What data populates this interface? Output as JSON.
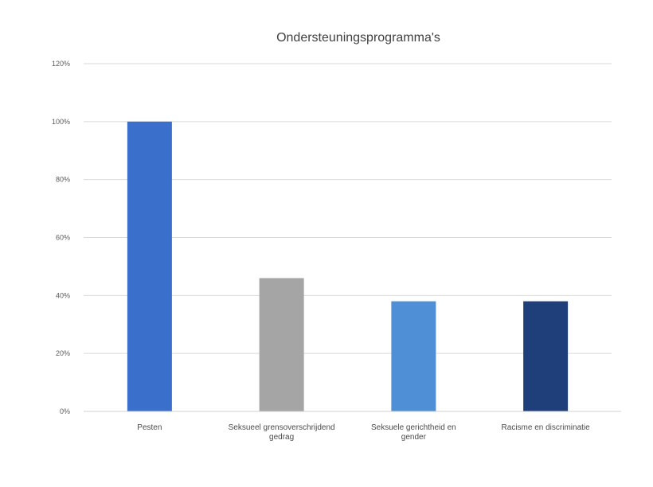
{
  "chart_data": {
    "type": "bar",
    "title": "Ondersteuningsprogramma's",
    "xlabel": "",
    "ylabel": "",
    "categories": [
      [
        "Pesten"
      ],
      [
        "Seksueel grensoverschrijdend",
        "gedrag"
      ],
      [
        "Seksuele gerichtheid en",
        "gender"
      ],
      [
        "Racisme en discriminatie"
      ]
    ],
    "values": [
      100,
      46,
      38,
      38
    ],
    "colors": [
      "#3a6fcc",
      "#a5a5a5",
      "#4f8fd6",
      "#1f3f7a"
    ],
    "ylim": [
      0,
      120
    ],
    "yticks": [
      0,
      20,
      40,
      60,
      80,
      100,
      120
    ],
    "ytick_labels": [
      "0%",
      "20%",
      "40%",
      "60%",
      "80%",
      "100%",
      "120%"
    ],
    "grid": true,
    "legend": "none"
  }
}
